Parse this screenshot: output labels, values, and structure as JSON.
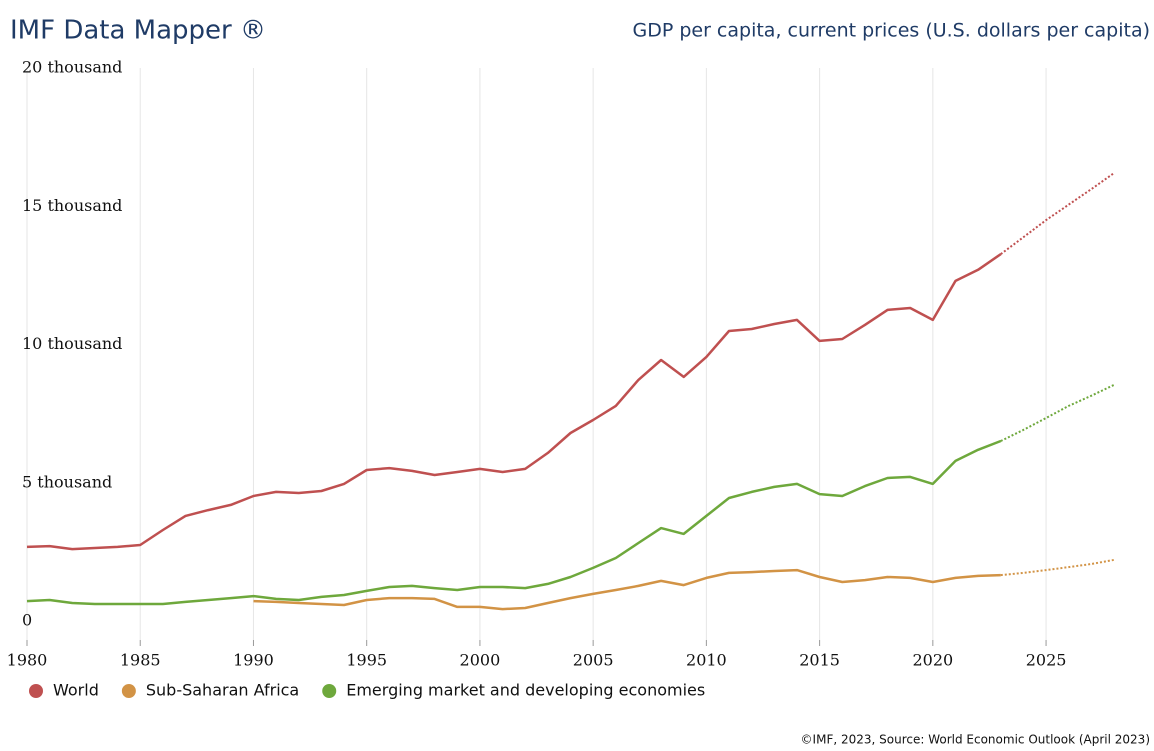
{
  "chart_data": {
    "type": "line",
    "title": "IMF Data Mapper ®",
    "subtitle": "GDP per capita, current prices (U.S. dollars per capita)",
    "source": "©IMF, 2023, Source: World Economic Outlook (April 2023)",
    "x": [
      1980,
      1981,
      1982,
      1983,
      1984,
      1985,
      1986,
      1987,
      1988,
      1989,
      1990,
      1991,
      1992,
      1993,
      1994,
      1995,
      1996,
      1997,
      1998,
      1999,
      2000,
      2001,
      2002,
      2003,
      2004,
      2005,
      2006,
      2007,
      2008,
      2009,
      2010,
      2011,
      2012,
      2013,
      2014,
      2015,
      2016,
      2017,
      2018,
      2019,
      2020,
      2021,
      2022,
      2023,
      2024,
      2025,
      2026,
      2027,
      2028
    ],
    "projection_start_x": 2023,
    "series": [
      {
        "name": "World",
        "color": "#bf5050",
        "values": [
          2680,
          2710,
          2600,
          2640,
          2680,
          2750,
          3290,
          3800,
          4010,
          4200,
          4520,
          4670,
          4630,
          4700,
          4960,
          5460,
          5530,
          5430,
          5280,
          5390,
          5500,
          5390,
          5500,
          6080,
          6800,
          7270,
          7780,
          8720,
          9440,
          8830,
          9550,
          10490,
          10560,
          10740,
          10890,
          10130,
          10200,
          10710,
          11250,
          11320,
          10890,
          12300,
          12700,
          13270,
          13880,
          14500,
          15060,
          15620,
          16200
        ]
      },
      {
        "name": "Sub-Saharan Africa",
        "color": "#d29345",
        "values": [
          null,
          null,
          null,
          null,
          null,
          null,
          null,
          null,
          null,
          null,
          720,
          690,
          650,
          615,
          580,
          760,
          830,
          830,
          800,
          510,
          510,
          430,
          470,
          650,
          830,
          980,
          1120,
          1270,
          1450,
          1300,
          1560,
          1740,
          1770,
          1810,
          1840,
          1590,
          1410,
          1480,
          1590,
          1560,
          1410,
          1560,
          1630,
          1660,
          1740,
          1840,
          1950,
          2060,
          2210
        ]
      },
      {
        "name": "Emerging market and developing economies",
        "color": "#6ea83c",
        "values": [
          720,
          760,
          650,
          615,
          615,
          615,
          615,
          690,
          760,
          830,
          900,
          800,
          760,
          870,
          940,
          1090,
          1230,
          1270,
          1190,
          1120,
          1230,
          1230,
          1190,
          1340,
          1590,
          1920,
          2280,
          2820,
          3360,
          3150,
          3800,
          4450,
          4670,
          4850,
          4960,
          4590,
          4520,
          4880,
          5170,
          5210,
          4960,
          5790,
          6190,
          6510,
          6910,
          7340,
          7780,
          8150,
          8540
        ]
      }
    ],
    "xlim": [
      1980,
      2028
    ],
    "xticks": [
      1980,
      1985,
      1990,
      1995,
      2000,
      2005,
      2010,
      2015,
      2020,
      2025
    ],
    "ylim": [
      0,
      20000
    ],
    "yticks": [
      0,
      {
        "value": 5000,
        "label": "5 thousand"
      },
      {
        "value": 10000,
        "label": "10 thousand"
      },
      {
        "value": 15000,
        "label": "15 thousand"
      },
      {
        "value": 20000,
        "label": "20 thousand"
      }
    ],
    "grid": "x",
    "legend": "bottom"
  }
}
